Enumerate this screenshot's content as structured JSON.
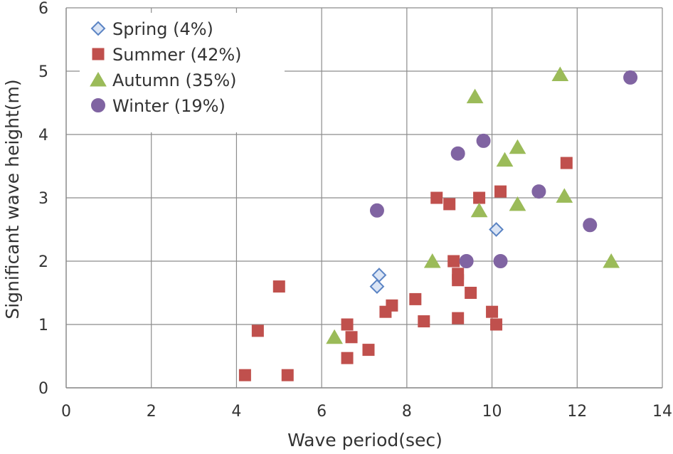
{
  "chart_data": {
    "type": "scatter",
    "title": "",
    "xlabel": "Wave period(sec)",
    "ylabel": "Significant wave height(m)",
    "xlim": [
      0,
      14
    ],
    "ylim": [
      0,
      6
    ],
    "xticks": [
      0,
      2,
      4,
      6,
      8,
      10,
      12,
      14
    ],
    "yticks": [
      0,
      1,
      2,
      3,
      4,
      5,
      6
    ],
    "grid": true,
    "legend_position": "top-left",
    "series": [
      {
        "name": "Spring (4%)",
        "marker": "diamond",
        "color": "#dbe5f5",
        "stroke": "#5b84c4",
        "points": [
          [
            7.3,
            1.6
          ],
          [
            7.35,
            1.78
          ],
          [
            10.1,
            2.5
          ]
        ]
      },
      {
        "name": "Summer (42%)",
        "marker": "square",
        "color": "#c0504d",
        "stroke": "#c0504d",
        "points": [
          [
            4.2,
            0.2
          ],
          [
            4.5,
            0.9
          ],
          [
            5.0,
            1.6
          ],
          [
            5.2,
            0.2
          ],
          [
            6.6,
            1.0
          ],
          [
            6.6,
            0.47
          ],
          [
            6.7,
            0.8
          ],
          [
            7.1,
            0.6
          ],
          [
            7.5,
            1.2
          ],
          [
            7.65,
            1.3
          ],
          [
            8.2,
            1.4
          ],
          [
            8.4,
            1.05
          ],
          [
            8.7,
            3.0
          ],
          [
            9.0,
            2.9
          ],
          [
            9.1,
            2.0
          ],
          [
            9.2,
            1.8
          ],
          [
            9.2,
            1.7
          ],
          [
            9.2,
            1.1
          ],
          [
            9.5,
            1.5
          ],
          [
            9.7,
            3.0
          ],
          [
            10.0,
            1.2
          ],
          [
            10.1,
            1.0
          ],
          [
            10.2,
            3.1
          ],
          [
            11.75,
            3.55
          ]
        ]
      },
      {
        "name": "Autumn (35%)",
        "marker": "triangle",
        "color": "#9bbb59",
        "stroke": "#9bbb59",
        "points": [
          [
            6.3,
            0.8
          ],
          [
            8.6,
            2.0
          ],
          [
            9.6,
            4.6
          ],
          [
            9.7,
            2.8
          ],
          [
            10.3,
            3.6
          ],
          [
            10.6,
            3.8
          ],
          [
            10.6,
            2.9
          ],
          [
            11.6,
            4.95
          ],
          [
            11.7,
            3.03
          ],
          [
            12.8,
            2.0
          ]
        ]
      },
      {
        "name": "Winter (19%)",
        "marker": "circle",
        "color": "#8064a2",
        "stroke": "#8064a2",
        "points": [
          [
            7.3,
            2.8
          ],
          [
            9.2,
            3.7
          ],
          [
            9.4,
            2.0
          ],
          [
            9.8,
            3.9
          ],
          [
            10.2,
            2.0
          ],
          [
            11.1,
            3.1
          ],
          [
            12.3,
            2.57
          ],
          [
            13.25,
            4.9
          ]
        ]
      }
    ]
  }
}
